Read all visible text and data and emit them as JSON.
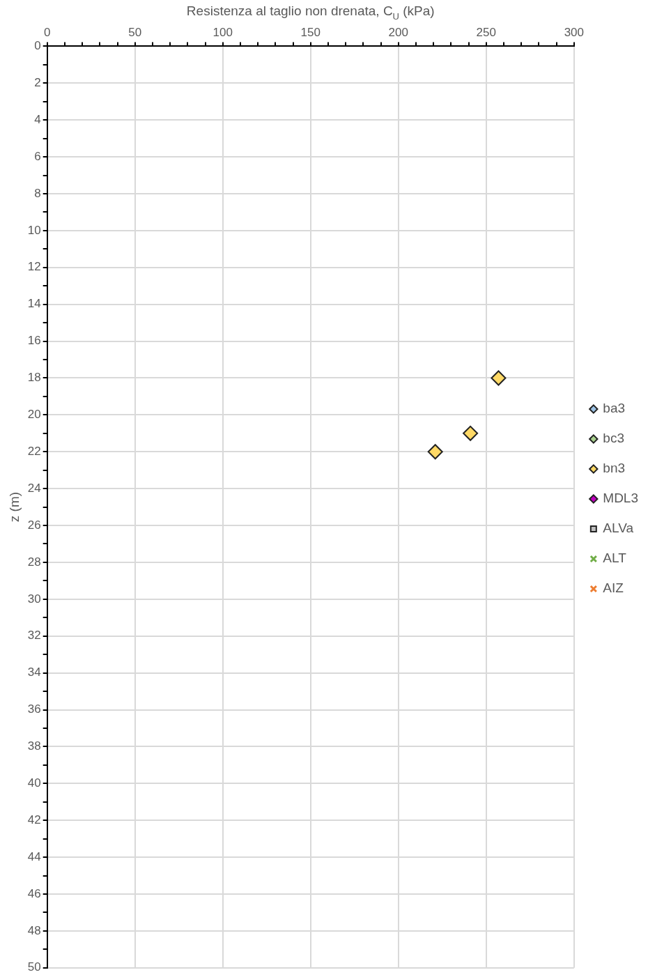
{
  "chart_data": {
    "type": "scatter",
    "xlabel": "Resistenza al taglio non drenata, C$_{U}$ (kPa)",
    "ylabel": "z (m)",
    "xlim": [
      0,
      300
    ],
    "xticks": [
      0,
      {
        "value": 10,
        "label": null
      },
      {
        "value": 20,
        "label": null
      },
      {
        "value": 30,
        "label": null
      },
      {
        "value": 40,
        "label": null
      },
      50,
      {
        "value": 60,
        "label": null
      },
      {
        "value": 70,
        "label": null
      },
      {
        "value": 80,
        "label": null
      },
      {
        "value": 90,
        "label": null
      },
      100,
      {
        "value": 110,
        "label": null
      },
      {
        "value": 120,
        "label": null
      },
      {
        "value": 130,
        "label": null
      },
      {
        "value": 140,
        "label": null
      },
      150,
      {
        "value": 160,
        "label": null
      },
      {
        "value": 170,
        "label": null
      },
      {
        "value": 180,
        "label": null
      },
      {
        "value": 190,
        "label": null
      },
      200,
      {
        "value": 210,
        "label": null
      },
      {
        "value": 220,
        "label": null
      },
      {
        "value": 230,
        "label": null
      },
      {
        "value": 240,
        "label": null
      },
      250,
      {
        "value": 260,
        "label": null
      },
      {
        "value": 270,
        "label": null
      },
      {
        "value": 280,
        "label": null
      },
      {
        "value": 290,
        "label": null
      },
      300
    ],
    "ylim": [
      50,
      0
    ],
    "yticks": [
      0,
      {
        "value": 1,
        "label": null
      },
      2,
      {
        "value": 3,
        "label": null
      },
      4,
      {
        "value": 5,
        "label": null
      },
      6,
      {
        "value": 7,
        "label": null
      },
      8,
      {
        "value": 9,
        "label": null
      },
      10,
      {
        "value": 11,
        "label": null
      },
      12,
      {
        "value": 13,
        "label": null
      },
      14,
      {
        "value": 15,
        "label": null
      },
      16,
      {
        "value": 17,
        "label": null
      },
      18,
      {
        "value": 19,
        "label": null
      },
      20,
      {
        "value": 21,
        "label": null
      },
      22,
      {
        "value": 23,
        "label": null
      },
      24,
      {
        "value": 25,
        "label": null
      },
      26,
      {
        "value": 27,
        "label": null
      },
      28,
      {
        "value": 29,
        "label": null
      },
      30,
      {
        "value": 31,
        "label": null
      },
      32,
      {
        "value": 33,
        "label": null
      },
      34,
      {
        "value": 35,
        "label": null
      },
      36,
      {
        "value": 37,
        "label": null
      },
      38,
      {
        "value": 39,
        "label": null
      },
      40,
      {
        "value": 41,
        "label": null
      },
      42,
      {
        "value": 43,
        "label": null
      },
      44,
      {
        "value": 45,
        "label": null
      },
      46,
      {
        "value": 47,
        "label": null
      },
      48,
      {
        "value": 49,
        "label": null
      },
      50
    ],
    "grid": true,
    "legend": "right",
    "series": [
      {
        "name": "ba3",
        "color": "#9dc3e6",
        "marker": "diamond"
      },
      {
        "name": "bc3",
        "color": "#a9d18e",
        "marker": "diamond"
      },
      {
        "name": "bn3",
        "color": "#ffd966",
        "marker": "diamond",
        "x": [
          257,
          241,
          221
        ],
        "values": [
          18,
          21,
          22
        ]
      },
      {
        "name": "MDL3",
        "color": "#c000c0",
        "marker": "diamond"
      },
      {
        "name": "ALVa",
        "color": "#bfbfbf",
        "marker": "square"
      },
      {
        "name": "ALT",
        "color": "#70ad47",
        "marker": "cross"
      },
      {
        "name": "AIZ",
        "color": "#ed7d31",
        "marker": "cross"
      }
    ]
  }
}
